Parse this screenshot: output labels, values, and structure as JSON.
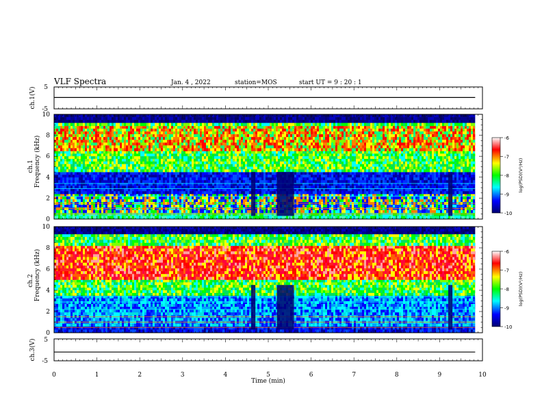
{
  "header": {
    "title": "VLF Spectra",
    "date": "Jan. 4 , 2022",
    "station": "station=MOS",
    "start": "start UT =  9 : 20 : 1"
  },
  "chart_data": [
    {
      "type": "line",
      "id": "ch1-waveform",
      "ylabel": "ch.1(V)",
      "ylim": [
        -5,
        5
      ],
      "yticks": [
        "5",
        "-5"
      ],
      "xlim": [
        0,
        10
      ],
      "series": [
        {
          "x": [
            0,
            9.83
          ],
          "y": [
            0.2,
            0.2
          ]
        }
      ]
    },
    {
      "type": "heatmap",
      "id": "ch1-spectrogram",
      "ylabel_top": "ch.1",
      "ylabel": "Frequency (kHz)",
      "ylim": [
        0,
        10
      ],
      "yticks": [
        0,
        2,
        4,
        6,
        8,
        10
      ],
      "xlim": [
        0,
        10
      ],
      "data_end_min": 9.83,
      "bands_kHz": [
        [
          0,
          0.6,
          "cyan-green"
        ],
        [
          0.6,
          2.4,
          "mixed-low"
        ],
        [
          2.4,
          4.5,
          "blue"
        ],
        [
          4.5,
          6.5,
          "green"
        ],
        [
          6.5,
          8.9,
          "yellow-red"
        ],
        [
          8.9,
          9.2,
          "green"
        ],
        [
          9.2,
          10,
          "dark-blue"
        ]
      ],
      "quiet_intervals_min": [
        [
          4.6,
          4.7
        ],
        [
          5.2,
          5.6
        ],
        [
          9.2,
          9.3
        ]
      ],
      "colorbar": {
        "label": "log(PSD)(V²/Hz)",
        "ticks": [
          "-6",
          "-7",
          "-8",
          "-9",
          "-10"
        ]
      }
    },
    {
      "type": "heatmap",
      "id": "ch2-spectrogram",
      "ylabel_top": "ch.2",
      "ylabel": "Frequency (kHz)",
      "ylim": [
        0,
        10
      ],
      "yticks": [
        0,
        2,
        4,
        6,
        8,
        10
      ],
      "xlim": [
        0,
        10
      ],
      "data_end_min": 9.83,
      "bands_kHz": [
        [
          0,
          0.6,
          "blue"
        ],
        [
          0.6,
          3.5,
          "blue-cyan"
        ],
        [
          3.5,
          5.0,
          "green"
        ],
        [
          5.0,
          8.2,
          "red"
        ],
        [
          8.2,
          9.3,
          "green"
        ],
        [
          9.3,
          10,
          "dark-blue"
        ]
      ],
      "quiet_intervals_min": [
        [
          4.6,
          4.7
        ],
        [
          5.2,
          5.6
        ],
        [
          9.2,
          9.3
        ]
      ],
      "colorbar": {
        "label": "log(PSD)(V²/Hz)",
        "ticks": [
          "-6",
          "-7",
          "-8",
          "-9",
          "-10"
        ]
      }
    },
    {
      "type": "line",
      "id": "ch3-waveform",
      "ylabel": "ch.3(V)",
      "ylim": [
        -5,
        5
      ],
      "yticks": [
        "5",
        "-5"
      ],
      "xlim": [
        0,
        10
      ],
      "xlabel": "Time (min)",
      "xticks": [
        0,
        1,
        2,
        3,
        4,
        5,
        6,
        7,
        8,
        9,
        10
      ],
      "series": [
        {
          "x": [
            0,
            9.83
          ],
          "y": [
            -1.0,
            -1.0
          ]
        }
      ]
    }
  ],
  "colors": {
    "scale": [
      "#000070",
      "#0000ff",
      "#00ffff",
      "#00ff00",
      "#ffff00",
      "#ff0000",
      "#ffffff"
    ]
  }
}
